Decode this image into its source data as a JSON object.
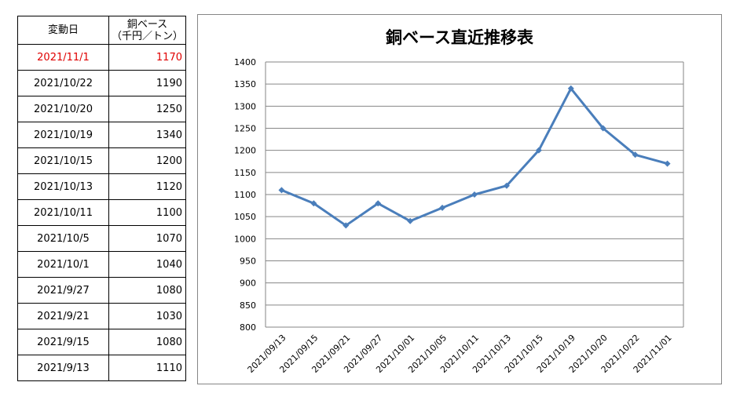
{
  "table": {
    "header": {
      "date": "変動日",
      "value_line1": "銅ベース",
      "value_line2": "（千円／トン）"
    },
    "rows": [
      {
        "date": "2021/11/1",
        "value": "1170"
      },
      {
        "date": "2021/10/22",
        "value": "1190"
      },
      {
        "date": "2021/10/20",
        "value": "1250"
      },
      {
        "date": "2021/10/19",
        "value": "1340"
      },
      {
        "date": "2021/10/15",
        "value": "1200"
      },
      {
        "date": "2021/10/13",
        "value": "1120"
      },
      {
        "date": "2021/10/11",
        "value": "1100"
      },
      {
        "date": "2021/10/5",
        "value": "1070"
      },
      {
        "date": "2021/10/1",
        "value": "1040"
      },
      {
        "date": "2021/9/27",
        "value": "1080"
      },
      {
        "date": "2021/9/21",
        "value": "1030"
      },
      {
        "date": "2021/9/15",
        "value": "1080"
      },
      {
        "date": "2021/9/13",
        "value": "1110"
      }
    ],
    "highlight_color": "#e00000"
  },
  "chart_data": {
    "type": "line",
    "title": "銅ベース直近推移表",
    "categories": [
      "2021/09/13",
      "2021/09/15",
      "2021/09/21",
      "2021/09/27",
      "2021/10/01",
      "2021/10/05",
      "2021/10/11",
      "2021/10/13",
      "2021/10/15",
      "2021/10/19",
      "2021/10/20",
      "2021/10/22",
      "2021/11/01"
    ],
    "series": [
      {
        "values": [
          1110,
          1080,
          1030,
          1080,
          1040,
          1070,
          1100,
          1120,
          1200,
          1340,
          1250,
          1190,
          1170
        ]
      }
    ],
    "ylim": [
      800,
      1400
    ],
    "ytick_step": 50,
    "grid": true,
    "legend": "none",
    "line_color": "#4a7ebb"
  }
}
